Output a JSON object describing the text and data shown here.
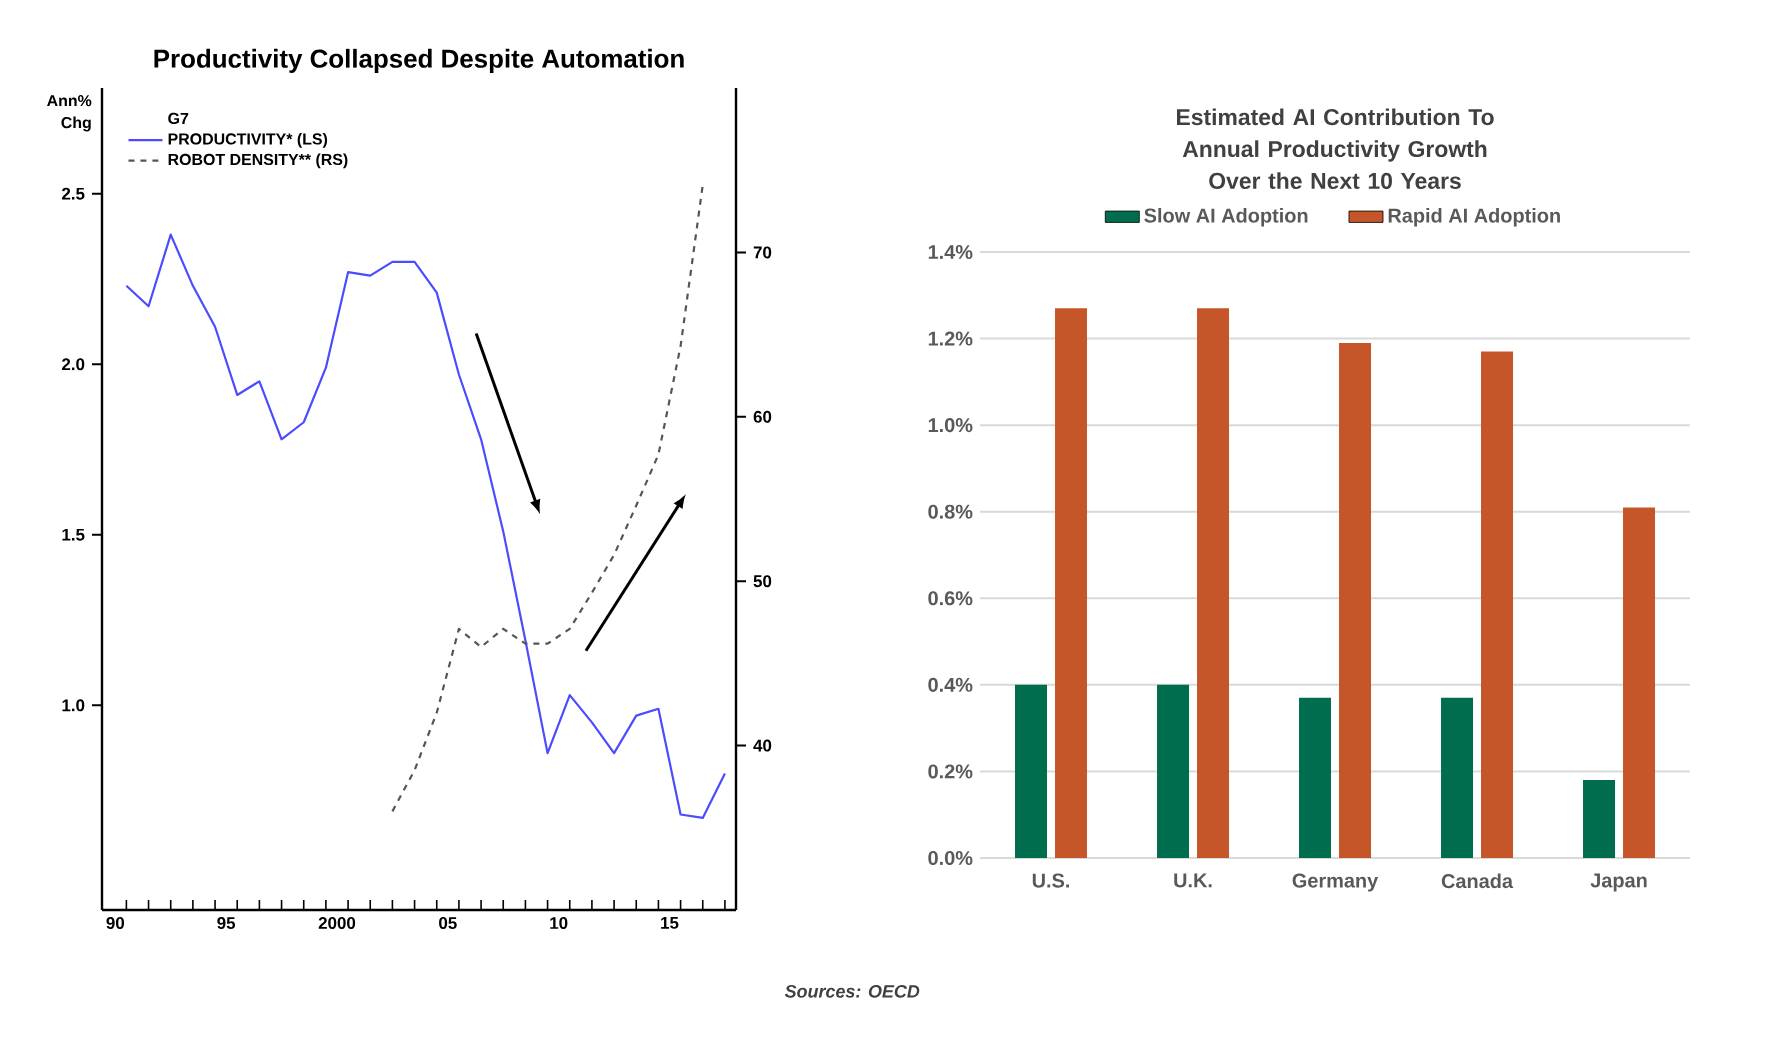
{
  "chart_data": [
    {
      "type": "line",
      "title": "Productivity Collapsed Despite Automation",
      "ylabel": "Ann% Chg",
      "legend_title": "G7",
      "legend": "top left",
      "xlim": [
        1989.4,
        2018
      ],
      "xticks": [
        {
          "value": 1990,
          "label": "90"
        },
        {
          "value": 1995,
          "label": "95"
        },
        {
          "value": 2000,
          "label": "2000"
        },
        {
          "value": 2005,
          "label": "05"
        },
        {
          "value": 2010,
          "label": "10"
        },
        {
          "value": 2015,
          "label": "15"
        },
        {
          "value": 1990.5,
          "label": null
        },
        {
          "value": 1991.5,
          "label": null
        },
        {
          "value": 1992.5,
          "label": null
        },
        {
          "value": 1993.5,
          "label": null
        },
        {
          "value": 1994.5,
          "label": null
        },
        {
          "value": 1995.5,
          "label": null
        },
        {
          "value": 1996.5,
          "label": null
        },
        {
          "value": 1997.5,
          "label": null
        },
        {
          "value": 1998.5,
          "label": null
        },
        {
          "value": 1999.5,
          "label": null
        },
        {
          "value": 2000.5,
          "label": null
        },
        {
          "value": 2001.5,
          "label": null
        },
        {
          "value": 2002.5,
          "label": null
        },
        {
          "value": 2003.5,
          "label": null
        },
        {
          "value": 2004.5,
          "label": null
        },
        {
          "value": 2005.5,
          "label": null
        },
        {
          "value": 2006.5,
          "label": null
        },
        {
          "value": 2007.5,
          "label": null
        },
        {
          "value": 2008.5,
          "label": null
        },
        {
          "value": 2009.5,
          "label": null
        },
        {
          "value": 2010.5,
          "label": null
        },
        {
          "value": 2011.5,
          "label": null
        },
        {
          "value": 2012.5,
          "label": null
        },
        {
          "value": 2013.5,
          "label": null
        },
        {
          "value": 2014.5,
          "label": null
        },
        {
          "value": 2015.5,
          "label": null
        },
        {
          "value": 2016.5,
          "label": null
        },
        {
          "value": 2017.5,
          "label": null
        }
      ],
      "ylim": [
        0.4,
        2.81
      ],
      "yticks": [
        {
          "value": 1.0,
          "label": "1.0"
        },
        {
          "value": 1.5,
          "label": "1.5"
        },
        {
          "value": 2.0,
          "label": "2.0"
        },
        {
          "value": 2.5,
          "label": "2.5"
        }
      ],
      "y2lim": [
        30,
        80
      ],
      "y2ticks": [
        {
          "value": 40,
          "label": "40"
        },
        {
          "value": 50,
          "label": "50"
        },
        {
          "value": 60,
          "label": "60"
        },
        {
          "value": 70,
          "label": "70"
        }
      ],
      "series": [
        {
          "name": "PRODUCTIVITY* (LS)",
          "color": "#4b4bff",
          "line_style": "solid",
          "x": [
            1990.5,
            1991.5,
            1992.5,
            1993.5,
            1994.5,
            1995.5,
            1996.5,
            1997.5,
            1998.5,
            1999.5,
            2000.5,
            2001.5,
            2002.5,
            2003.5,
            2004.5,
            2005.5,
            2006.5,
            2007.5,
            2008.5,
            2009.5,
            2010.5,
            2011.5,
            2012.5,
            2013.5,
            2014.5,
            2015.5,
            2016.5,
            2017.5
          ],
          "values": [
            2.23,
            2.17,
            2.38,
            2.23,
            2.11,
            1.91,
            1.95,
            1.78,
            1.83,
            1.99,
            2.27,
            2.26,
            2.3,
            2.3,
            2.21,
            1.97,
            1.78,
            1.51,
            1.19,
            0.86,
            1.03,
            0.95,
            0.86,
            0.97,
            0.99,
            0.68,
            0.67,
            0.8
          ]
        },
        {
          "name": "ROBOT DENSITY** (RS)",
          "color": "#555555",
          "line_style": "dashed",
          "axis": "y2",
          "x": [
            2002.5,
            2003.5,
            2004.5,
            2005.5,
            2006.5,
            2007.5,
            2008.5,
            2009.5,
            2010.5,
            2011.5,
            2012.5,
            2013.5,
            2014.5,
            2015.5,
            2016.5
          ],
          "values": [
            36.0,
            38.5,
            42.0,
            47.1,
            46.0,
            47.1,
            46.2,
            46.2,
            47.1,
            49.3,
            51.6,
            54.6,
            57.7,
            64.3,
            74.1
          ]
        }
      ]
    },
    {
      "type": "bar",
      "title": "Estimated AI Contribution To Annual Productivity Growth Over the Next 10 Years",
      "legend": "top",
      "grid": "y",
      "categories": [
        "U.S.",
        "U.K.",
        "Germany",
        "Canada",
        "Japan"
      ],
      "ylim": [
        0,
        1.4
      ],
      "yticks": [
        {
          "value": 0,
          "label": "0.0%"
        },
        {
          "value": 0.2,
          "label": "0.2%"
        },
        {
          "value": 0.4,
          "label": "0.4%"
        },
        {
          "value": 0.6,
          "label": "0.6%"
        },
        {
          "value": 0.8,
          "label": "0.8%"
        },
        {
          "value": 1.0,
          "label": "1.0%"
        },
        {
          "value": 1.2,
          "label": "1.2%"
        },
        {
          "value": 1.4,
          "label": "1.4%"
        }
      ],
      "series": [
        {
          "name": "Slow AI Adoption",
          "color": "#006e4e",
          "values": [
            0.4,
            0.4,
            0.37,
            0.37,
            0.18
          ]
        },
        {
          "name": "Rapid AI Adoption",
          "color": "#c5562a",
          "values": [
            1.27,
            1.27,
            1.19,
            1.17,
            0.81
          ]
        }
      ],
      "annotations": [
        "Sources: OECD"
      ]
    }
  ]
}
